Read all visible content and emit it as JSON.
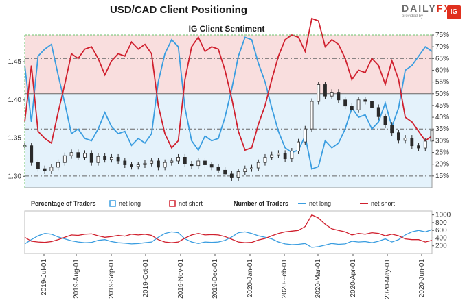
{
  "header": {
    "title": "USD/CAD Client Positioning",
    "subtitle": "IG Client Sentiment"
  },
  "logo": {
    "brand_a": "DAILY",
    "brand_b": "FX",
    "tagline": "provided by",
    "badge": "IG"
  },
  "legend": {
    "pct_title": "Percentage of Traders",
    "pct_long": "net long",
    "pct_short": "net short",
    "num_title": "Number of Traders",
    "num_long": "net long",
    "num_short": "net short"
  },
  "colors": {
    "long": "#3a9de0",
    "short": "#d0202e",
    "price": "#2a2a2a",
    "bg_long": "#e4f2fb",
    "bg_short": "#f9dede",
    "frame": "#6cc36c"
  },
  "chart_data": [
    {
      "type": "line",
      "title": "IG Client Sentiment",
      "x_ticks": [
        "2019-Jul-01",
        "2019-Aug-01",
        "2019-Sep-01",
        "2019-Oct-01",
        "2019-Nov-01",
        "2019-Dec-01",
        "2020-Jan-01",
        "2020-Feb-01",
        "2020-Mar-01",
        "2020-Apr-01",
        "2020-May-01",
        "2020-Jun-01"
      ],
      "y_left_ticks": [
        "1.30",
        "1.35",
        "1.40",
        "1.45"
      ],
      "y_left_range": [
        1.285,
        1.485
      ],
      "y_right_ticks": [
        "15%",
        "20%",
        "25%",
        "30%",
        "35%",
        "40%",
        "45%",
        "50%",
        "55%",
        "60%",
        "65%",
        "70%",
        "75%"
      ],
      "y_right_range": [
        0.1,
        0.75
      ],
      "reference_lines": [
        "50%",
        "65%",
        "35%",
        "15%"
      ],
      "series": [
        {
          "name": "net long",
          "values": [
            0.62,
            0.38,
            0.66,
            0.69,
            0.71,
            0.58,
            0.46,
            0.33,
            0.35,
            0.31,
            0.3,
            0.35,
            0.42,
            0.36,
            0.33,
            0.34,
            0.28,
            0.31,
            0.29,
            0.33,
            0.55,
            0.67,
            0.73,
            0.7,
            0.44,
            0.3,
            0.26,
            0.32,
            0.3,
            0.31,
            0.4,
            0.52,
            0.66,
            0.74,
            0.73,
            0.63,
            0.55,
            0.44,
            0.34,
            0.27,
            0.25,
            0.26,
            0.32,
            0.18,
            0.19,
            0.3,
            0.27,
            0.29,
            0.35,
            0.44,
            0.4,
            0.41,
            0.35,
            0.38,
            0.46,
            0.36,
            0.44,
            0.6,
            0.62,
            0.66,
            0.7,
            0.68
          ]
        },
        {
          "name": "net short",
          "values": [
            0.38,
            0.62,
            0.34,
            0.31,
            0.29,
            0.42,
            0.54,
            0.67,
            0.65,
            0.69,
            0.7,
            0.65,
            0.58,
            0.64,
            0.67,
            0.66,
            0.72,
            0.69,
            0.71,
            0.67,
            0.45,
            0.33,
            0.27,
            0.3,
            0.56,
            0.7,
            0.74,
            0.68,
            0.7,
            0.69,
            0.6,
            0.48,
            0.34,
            0.26,
            0.27,
            0.37,
            0.45,
            0.56,
            0.66,
            0.73,
            0.75,
            0.74,
            0.68,
            0.82,
            0.81,
            0.7,
            0.73,
            0.71,
            0.65,
            0.56,
            0.6,
            0.59,
            0.65,
            0.62,
            0.54,
            0.64,
            0.56,
            0.4,
            0.38,
            0.34,
            0.3,
            0.32
          ]
        },
        {
          "name": "USD/CAD",
          "values": [
            1.34,
            1.318,
            1.31,
            1.307,
            1.312,
            1.318,
            1.327,
            1.331,
            1.325,
            1.33,
            1.318,
            1.326,
            1.322,
            1.325,
            1.32,
            1.315,
            1.313,
            1.315,
            1.317,
            1.32,
            1.312,
            1.318,
            1.32,
            1.325,
            1.316,
            1.314,
            1.32,
            1.315,
            1.312,
            1.308,
            1.303,
            1.298,
            1.306,
            1.31,
            1.311,
            1.318,
            1.325,
            1.328,
            1.33,
            1.323,
            1.333,
            1.345,
            1.362,
            1.398,
            1.42,
            1.405,
            1.41,
            1.4,
            1.392,
            1.387,
            1.4,
            1.398,
            1.39,
            1.378,
            1.367,
            1.357,
            1.347,
            1.35,
            1.34,
            1.337,
            1.346,
            1.36
          ]
        }
      ]
    },
    {
      "type": "line",
      "x_ticks": [
        "2019-Jul-01",
        "2019-Aug-01",
        "2019-Sep-01",
        "2019-Oct-01",
        "2019-Nov-01",
        "2019-Dec-01",
        "2020-Jan-01",
        "2020-Feb-01",
        "2020-Mar-01",
        "2020-Apr-01",
        "2020-May-01",
        "2020-Jun-01"
      ],
      "y_ticks": [
        "200",
        "400",
        "600",
        "800",
        "1000"
      ],
      "y_range": [
        0,
        1100
      ],
      "series": [
        {
          "name": "net long",
          "values": [
            250,
            360,
            460,
            520,
            500,
            430,
            380,
            330,
            300,
            280,
            290,
            340,
            360,
            310,
            280,
            270,
            250,
            260,
            280,
            300,
            420,
            520,
            560,
            540,
            380,
            300,
            260,
            300,
            290,
            300,
            340,
            430,
            540,
            560,
            520,
            460,
            420,
            380,
            300,
            250,
            230,
            240,
            260,
            160,
            180,
            220,
            260,
            240,
            250,
            320,
            300,
            310,
            280,
            320,
            380,
            300,
            360,
            480,
            560,
            600,
            560,
            620
          ]
        },
        {
          "name": "net short",
          "values": [
            420,
            320,
            300,
            290,
            310,
            360,
            420,
            480,
            470,
            500,
            510,
            460,
            420,
            440,
            470,
            450,
            500,
            480,
            500,
            470,
            360,
            300,
            280,
            300,
            400,
            480,
            520,
            480,
            490,
            480,
            440,
            370,
            300,
            280,
            290,
            350,
            390,
            460,
            520,
            560,
            580,
            600,
            700,
            1000,
            920,
            760,
            640,
            600,
            560,
            480,
            520,
            500,
            540,
            520,
            460,
            500,
            460,
            380,
            360,
            360,
            300,
            340
          ]
        }
      ]
    }
  ]
}
